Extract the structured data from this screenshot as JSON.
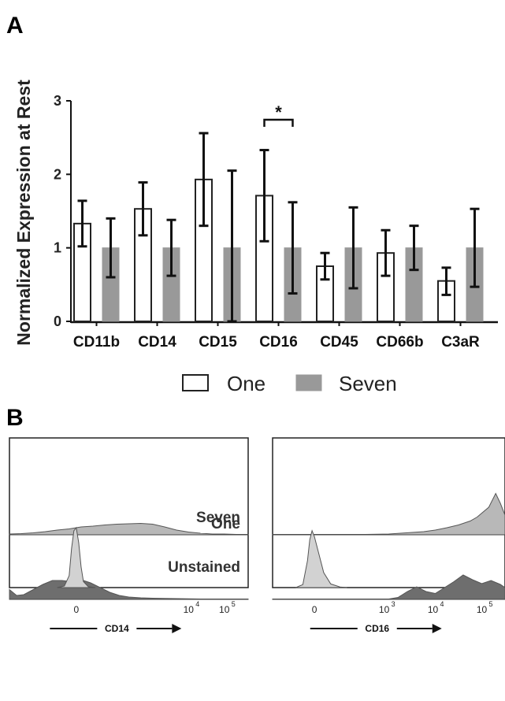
{
  "panels": {
    "a_label": "A",
    "b_label": "B"
  },
  "colors": {
    "seven_fill": "#999999",
    "one_fill": "#ffffff",
    "bar_stroke": "#222222",
    "hist_one": "#b8b8b8",
    "hist_seven": "#6e6e6e",
    "hist_unstained": "#d2d2d2"
  },
  "chart_data": [
    {
      "type": "bar",
      "ylabel": "Normalized Expression at Rest",
      "xlabel": "",
      "ylim": [
        0,
        3
      ],
      "yticks": [
        0,
        1,
        2,
        3
      ],
      "categories": [
        "CD11b",
        "CD14",
        "CD15",
        "CD16",
        "CD45",
        "CD66b",
        "C3aR"
      ],
      "series": [
        {
          "name": "One",
          "values": [
            1.33,
            1.53,
            1.93,
            1.71,
            0.75,
            0.93,
            0.55
          ],
          "err_low": [
            1.02,
            1.17,
            1.3,
            1.09,
            0.57,
            0.62,
            0.36
          ],
          "err_high": [
            1.64,
            1.89,
            2.56,
            2.33,
            0.93,
            1.24,
            0.73
          ]
        },
        {
          "name": "Seven",
          "values": [
            1.0,
            1.0,
            1.0,
            1.0,
            1.0,
            1.0,
            1.0
          ],
          "err_low": [
            0.6,
            0.62,
            0.0,
            0.38,
            0.45,
            0.7,
            0.47
          ],
          "err_high": [
            1.4,
            1.38,
            2.05,
            1.62,
            1.55,
            1.3,
            1.53
          ]
        }
      ],
      "significance": {
        "category": "CD16",
        "mark": "*"
      },
      "legend": [
        "One",
        "Seven"
      ],
      "legend_position": "bottom-center"
    },
    {
      "type": "histogram",
      "title": "",
      "xlabel": "CD14",
      "xticks": [
        {
          "base": "0",
          "exp": ""
        },
        {
          "base": "10",
          "exp": "4"
        },
        {
          "base": "10",
          "exp": "5"
        }
      ],
      "xtick_pos": [
        0.28,
        0.75,
        0.9
      ],
      "series": [
        {
          "name": "One",
          "profile": [
            [
              0,
              0.02
            ],
            [
              0.05,
              0.03
            ],
            [
              0.1,
              0.05
            ],
            [
              0.15,
              0.08
            ],
            [
              0.2,
              0.12
            ],
            [
              0.25,
              0.15
            ],
            [
              0.3,
              0.2
            ],
            [
              0.35,
              0.22
            ],
            [
              0.4,
              0.25
            ],
            [
              0.45,
              0.27
            ],
            [
              0.5,
              0.28
            ],
            [
              0.55,
              0.29
            ],
            [
              0.6,
              0.27
            ],
            [
              0.65,
              0.2
            ],
            [
              0.7,
              0.12
            ],
            [
              0.75,
              0.07
            ],
            [
              0.8,
              0.04
            ],
            [
              0.85,
              0.02
            ],
            [
              0.9,
              0.02
            ],
            [
              0.95,
              0.01
            ],
            [
              1,
              0.01
            ]
          ]
        },
        {
          "name": "Seven",
          "profile": [
            [
              0,
              0.25
            ],
            [
              0.03,
              0.1
            ],
            [
              0.06,
              0.12
            ],
            [
              0.1,
              0.25
            ],
            [
              0.14,
              0.38
            ],
            [
              0.18,
              0.48
            ],
            [
              0.22,
              0.48
            ],
            [
              0.26,
              0.45
            ],
            [
              0.3,
              0.5
            ],
            [
              0.34,
              0.42
            ],
            [
              0.38,
              0.3
            ],
            [
              0.42,
              0.18
            ],
            [
              0.46,
              0.1
            ],
            [
              0.5,
              0.06
            ],
            [
              0.55,
              0.04
            ],
            [
              0.6,
              0.03
            ],
            [
              0.7,
              0.02
            ],
            [
              0.8,
              0.01
            ],
            [
              1,
              0.01
            ]
          ]
        },
        {
          "name": "Unstained",
          "profile": [
            [
              0.2,
              0
            ],
            [
              0.23,
              0.05
            ],
            [
              0.25,
              0.4
            ],
            [
              0.26,
              1.3
            ],
            [
              0.27,
              1.9
            ],
            [
              0.28,
              2.0
            ],
            [
              0.29,
              1.5
            ],
            [
              0.3,
              0.7
            ],
            [
              0.31,
              0.2
            ],
            [
              0.33,
              0.03
            ],
            [
              0.36,
              0
            ]
          ]
        }
      ]
    },
    {
      "type": "histogram",
      "title": "",
      "xlabel": "CD16",
      "xticks": [
        {
          "base": "0",
          "exp": ""
        },
        {
          "base": "10",
          "exp": "3"
        },
        {
          "base": "10",
          "exp": "4"
        },
        {
          "base": "10",
          "exp": "5"
        }
      ],
      "xtick_pos": [
        0.18,
        0.48,
        0.69,
        0.9
      ],
      "series": [
        {
          "name": "One",
          "profile": [
            [
              0,
              0.01
            ],
            [
              0.4,
              0.01
            ],
            [
              0.5,
              0.02
            ],
            [
              0.55,
              0.04
            ],
            [
              0.6,
              0.06
            ],
            [
              0.65,
              0.08
            ],
            [
              0.7,
              0.12
            ],
            [
              0.75,
              0.18
            ],
            [
              0.8,
              0.25
            ],
            [
              0.85,
              0.35
            ],
            [
              0.88,
              0.45
            ],
            [
              0.9,
              0.55
            ],
            [
              0.93,
              0.7
            ],
            [
              0.96,
              1.05
            ],
            [
              0.98,
              0.8
            ],
            [
              1,
              0.5
            ]
          ]
        },
        {
          "name": "Seven",
          "profile": [
            [
              0,
              0.01
            ],
            [
              0.5,
              0.01
            ],
            [
              0.54,
              0.05
            ],
            [
              0.58,
              0.2
            ],
            [
              0.62,
              0.32
            ],
            [
              0.66,
              0.2
            ],
            [
              0.7,
              0.15
            ],
            [
              0.74,
              0.3
            ],
            [
              0.78,
              0.45
            ],
            [
              0.82,
              0.62
            ],
            [
              0.86,
              0.5
            ],
            [
              0.9,
              0.4
            ],
            [
              0.94,
              0.48
            ],
            [
              0.98,
              0.38
            ],
            [
              1,
              0.3
            ]
          ]
        },
        {
          "name": "Unstained",
          "profile": [
            [
              0.1,
              0
            ],
            [
              0.13,
              0.1
            ],
            [
              0.15,
              0.9
            ],
            [
              0.16,
              1.6
            ],
            [
              0.17,
              1.9
            ],
            [
              0.18,
              1.7
            ],
            [
              0.2,
              1.1
            ],
            [
              0.22,
              0.5
            ],
            [
              0.25,
              0.12
            ],
            [
              0.29,
              0.02
            ],
            [
              0.32,
              0
            ]
          ]
        }
      ]
    }
  ]
}
